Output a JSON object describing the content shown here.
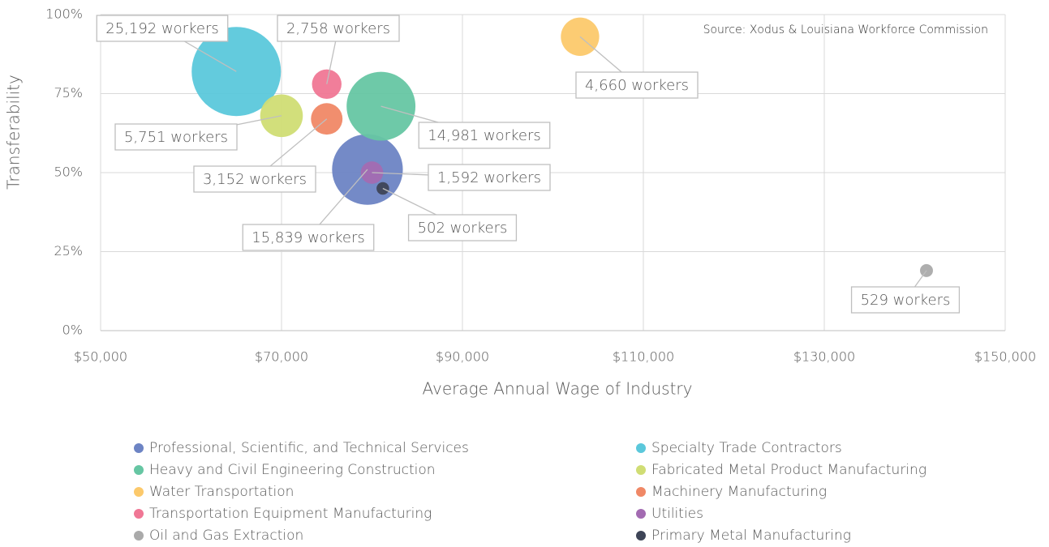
{
  "chart_data": {
    "type": "bubble",
    "source": "Source: Xodus & Louisiana Workforce Commission",
    "xlabel": "Average Annual Wage of Industry",
    "ylabel": "Transferability",
    "xlim": [
      50000,
      150000
    ],
    "ylim": [
      0,
      100
    ],
    "xticks": [
      {
        "value": 50000,
        "label": "$50,000"
      },
      {
        "value": 70000,
        "label": "$70,000"
      },
      {
        "value": 90000,
        "label": "$90,000"
      },
      {
        "value": 110000,
        "label": "$110,000"
      },
      {
        "value": 130000,
        "label": "$130,000"
      },
      {
        "value": 150000,
        "label": "$150,000"
      }
    ],
    "yticks": [
      {
        "value": 0,
        "label": "0%"
      },
      {
        "value": 25,
        "label": "25%"
      },
      {
        "value": 50,
        "label": "50%"
      },
      {
        "value": 75,
        "label": "75%"
      },
      {
        "value": 100,
        "label": "100%"
      }
    ],
    "grid": true,
    "legend": "bottom",
    "series": [
      {
        "name": "Professional, Scientific, and Technical Services",
        "color": "#6d84c4",
        "x": [
          79500
        ],
        "values": [
          51
        ],
        "sizes": [
          15839
        ],
        "value_labels": [
          "15,839 workers"
        ]
      },
      {
        "name": "Specialty Trade Contractors",
        "color": "#5bc8db",
        "x": [
          65000
        ],
        "values": [
          82
        ],
        "sizes": [
          25192
        ],
        "value_labels": [
          "25,192 workers"
        ]
      },
      {
        "name": "Heavy and Civil Engineering Construction",
        "color": "#66c6a3",
        "x": [
          81000
        ],
        "values": [
          71
        ],
        "sizes": [
          14981
        ],
        "value_labels": [
          "14,981 workers"
        ]
      },
      {
        "name": "Fabricated Metal Product Manufacturing",
        "color": "#d0dd74",
        "x": [
          70000
        ],
        "values": [
          68
        ],
        "sizes": [
          5751
        ],
        "value_labels": [
          "5,751 workers"
        ]
      },
      {
        "name": "Water Transportation",
        "color": "#fcc96b",
        "x": [
          103000
        ],
        "values": [
          93
        ],
        "sizes": [
          4660
        ],
        "value_labels": [
          "4,660 workers"
        ]
      },
      {
        "name": "Machinery Manufacturing",
        "color": "#f08866",
        "x": [
          75000
        ],
        "values": [
          67
        ],
        "sizes": [
          3152
        ],
        "value_labels": [
          "3,152 workers"
        ]
      },
      {
        "name": "Transportation Equipment Manufacturing",
        "color": "#f07795",
        "x": [
          75000
        ],
        "values": [
          78
        ],
        "sizes": [
          2758
        ],
        "value_labels": [
          "2,758 workers"
        ]
      },
      {
        "name": "Utilities",
        "color": "#a36bb2",
        "x": [
          80000
        ],
        "values": [
          50
        ],
        "sizes": [
          1592
        ],
        "value_labels": [
          "1,592 workers"
        ]
      },
      {
        "name": "Oil and Gas Extraction",
        "color": "#aaaaaa",
        "x": [
          141300
        ],
        "values": [
          19
        ],
        "sizes": [
          529
        ],
        "value_labels": [
          "529 workers"
        ]
      },
      {
        "name": "Primary Metal Manufacturing",
        "color": "#3e4557",
        "x": [
          81200
        ],
        "values": [
          45
        ],
        "sizes": [
          502
        ],
        "value_labels": [
          "502 workers"
        ]
      }
    ]
  }
}
